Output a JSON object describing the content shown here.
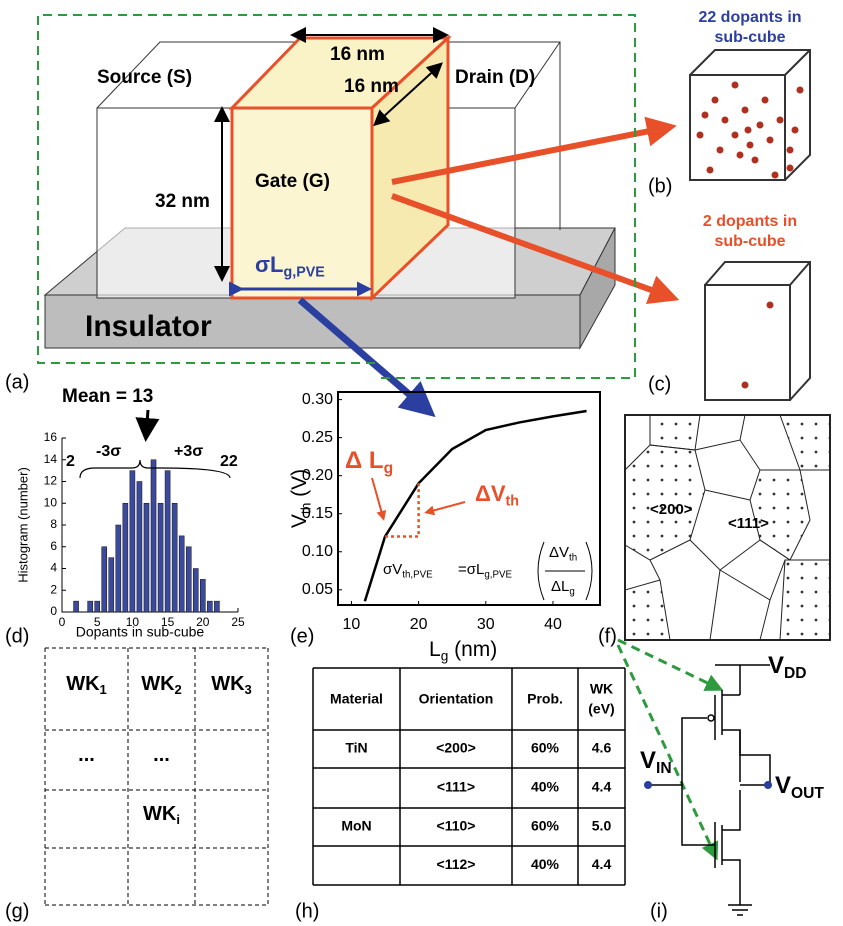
{
  "panel_labels": [
    "(a)",
    "(b)",
    "(c)",
    "(d)",
    "(e)",
    "(f)",
    "(g)",
    "(h)",
    "(i)"
  ],
  "device": {
    "source": "Source (S)",
    "drain": "Drain (D)",
    "gate": "Gate (G)",
    "insulator": "Insulator",
    "width": "16 nm",
    "depth": "16 nm",
    "height": "32 nm",
    "gate_length": {
      "text": "σL",
      "sub": "g,PVE"
    }
  },
  "cube_b": [
    "22 dopants in",
    "sub-cube"
  ],
  "cube_c": [
    "2 dopants in",
    "sub-cube"
  ],
  "grains": [
    "<200>",
    "<111>"
  ],
  "chart_data": [
    {
      "type": "bar",
      "x": [
        2,
        3,
        4,
        5,
        6,
        7,
        8,
        9,
        10,
        11,
        12,
        13,
        14,
        15,
        16,
        17,
        18,
        19,
        20,
        21,
        22
      ],
      "values": [
        1,
        0,
        1,
        1,
        6,
        5,
        8,
        10,
        13,
        12,
        10,
        14,
        10,
        13,
        10,
        7,
        6,
        4,
        3,
        1,
        1
      ],
      "color": "#3b4a9c",
      "xlim": [
        0,
        25
      ],
      "xticks": [
        0,
        5,
        10,
        15,
        20,
        25
      ],
      "ylim": [
        0,
        16
      ],
      "yticks": [
        0,
        2,
        4,
        6,
        8,
        10,
        12,
        14,
        16
      ],
      "xlabel": "Dopants in sub-cube",
      "ylabel": "Histogram (number)",
      "annotations": [
        "Mean = 13",
        "2",
        "-3σ",
        "+3σ",
        "22"
      ]
    },
    {
      "type": "line",
      "x": [
        12,
        15,
        20,
        25,
        30,
        35,
        40,
        45
      ],
      "values": [
        0.035,
        0.12,
        0.19,
        0.235,
        0.26,
        0.27,
        0.278,
        0.285
      ],
      "color": "#000000",
      "xlim": [
        8,
        47
      ],
      "xticks": [
        10,
        20,
        30,
        40
      ],
      "ylim": [
        0.03,
        0.31
      ],
      "yticks": [
        0.05,
        {
          "value": 0.1,
          "label": "0.10"
        },
        0.15,
        {
          "value": 0.2,
          "label": "0.20"
        },
        0.25,
        {
          "value": 0.3,
          "label": "0.30"
        }
      ],
      "xlabel": {
        "text": "L",
        "sub": "g",
        "rest": " (nm)"
      },
      "ylabel": {
        "text": "V",
        "sub": "th",
        "rest": " (V)"
      },
      "delta_lg": {
        "text": "Δ L",
        "sub": "g"
      },
      "delta_vth": {
        "text": "ΔV",
        "sub": "th"
      },
      "formula": {
        "lhs": {
          "text": "σV",
          "sub": "th,PVE"
        },
        "rhs": {
          "text": "=σL",
          "sub": "g,PVE"
        },
        "num": {
          "text": "ΔV",
          "sub": "th"
        },
        "den": {
          "text": "ΔL",
          "sub": "g"
        }
      }
    }
  ],
  "wk_grid": [
    [
      {
        "text": "WK",
        "sub": "1"
      },
      {
        "text": "WK",
        "sub": "2"
      },
      {
        "text": "WK",
        "sub": "3"
      }
    ],
    [
      {
        "text": "..."
      },
      {
        "text": "..."
      },
      null
    ],
    [
      null,
      {
        "text": "WK",
        "sub": "i"
      },
      null
    ],
    [
      null,
      null,
      null
    ]
  ],
  "table": {
    "header": [
      "Material",
      "Orientation",
      "Prob.",
      [
        "WK",
        "(eV)"
      ]
    ],
    "rows": [
      [
        "TiN",
        "<200>",
        "60%",
        "4.6"
      ],
      [
        null,
        "<111>",
        "40%",
        "4.4"
      ],
      [
        "MoN",
        "<110>",
        "60%",
        "5.0"
      ],
      [
        null,
        "<112>",
        "40%",
        "4.4"
      ]
    ]
  },
  "circuit": {
    "vdd": {
      "text": "V",
      "sub": "DD"
    },
    "vin": {
      "text": "V",
      "sub": "IN"
    },
    "vout": {
      "text": "V",
      "sub": "OUT"
    }
  }
}
